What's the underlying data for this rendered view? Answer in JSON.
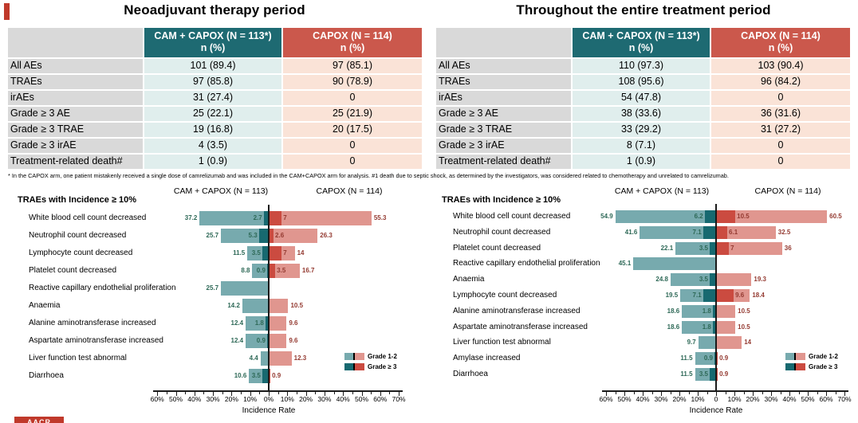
{
  "footnote": "* In the CAPOX arm, one patient mistakenly received a single dose of camrelizumab and was included in the CAM+CAPOX arm for analysis.  #1 death due to septic shock, as determined by the investigators, was considered related to chemotherapy and unrelated to camrelizumab.",
  "logo_text": "AACR",
  "colors": {
    "accent_red": "#C0392B",
    "teal_header": "#1E6A72",
    "red_header": "#CB584C",
    "gray_cell": "#D9D9D9",
    "teal_cell": "#E0EEED",
    "peach_cell": "#FAE3D7",
    "bar_teal_light": "#77AAAE",
    "bar_teal_dark": "#176970",
    "bar_red_light": "#E0968F",
    "bar_red_dark": "#CB4B40",
    "label_green": "#2E6957",
    "label_red": "#943A31"
  },
  "panels": [
    {
      "title": "Neoadjuvant therapy period",
      "table": {
        "arm_headers": [
          "CAM + CAPOX (N = 113*)",
          "CAPOX (N = 114)"
        ],
        "subheader": "n (%)",
        "rows": [
          {
            "label": "All AEs",
            "cam": "101 (89.4)",
            "capox": "97 (85.1)"
          },
          {
            "label": "TRAEs",
            "cam": "97 (85.8)",
            "capox": "90 (78.9)"
          },
          {
            "label": "irAEs",
            "cam": "31 (27.4)",
            "capox": "0"
          },
          {
            "label": "Grade ≥ 3  AE",
            "cam": "25 (22.1)",
            "capox": "25 (21.9)"
          },
          {
            "label": "Grade ≥ 3  TRAE",
            "cam": "19 (16.8)",
            "capox": "20 (17.5)"
          },
          {
            "label": "Grade ≥ 3  irAE",
            "cam": "4 (3.5)",
            "capox": "0"
          },
          {
            "label": "Treatment-related death#",
            "cam": "1 (0.9)",
            "capox": "0"
          }
        ]
      }
    },
    {
      "title": "Throughout the entire treatment period",
      "table": {
        "arm_headers": [
          "CAM + CAPOX (N = 113*)",
          "CAPOX (N = 114)"
        ],
        "subheader": "n (%)",
        "rows": [
          {
            "label": "All AEs",
            "cam": "110 (97.3)",
            "capox": "103 (90.4)"
          },
          {
            "label": "TRAEs",
            "cam": "108 (95.6)",
            "capox": "96 (84.2)"
          },
          {
            "label": "irAEs",
            "cam": "54 (47.8)",
            "capox": "0"
          },
          {
            "label": "Grade ≥ 3  AE",
            "cam": "38 (33.6)",
            "capox": "36 (31.6)"
          },
          {
            "label": "Grade ≥ 3  TRAE",
            "cam": "33 (29.2)",
            "capox": "31 (27.2)"
          },
          {
            "label": "Grade ≥ 3  irAE",
            "cam": "8 (7.1)",
            "capox": "0"
          },
          {
            "label": "Treatment-related death#",
            "cam": "1 (0.9)",
            "capox": "0"
          }
        ]
      }
    }
  ],
  "chart_data": [
    {
      "type": "bar",
      "variant": "butterfly-tornado",
      "title": "TRAEs with Incidence ≥ 10%",
      "group_headers": [
        "CAM + CAPOX (N = 113)",
        "CAPOX (N = 114)"
      ],
      "xlabel": "Incidence Rate",
      "axis": {
        "left_max_pct": 60,
        "right_max_pct": 70,
        "tick_step_pct": 10
      },
      "x_tick_labels": [
        "60%",
        "50%",
        "40%",
        "30%",
        "20%",
        "10%",
        "0%",
        "10%",
        "20%",
        "30%",
        "40%",
        "50%",
        "60%",
        "70%"
      ],
      "legend": [
        "Grade 1-2",
        "Grade ≥ 3"
      ],
      "rows": [
        {
          "label": "White blood cell count decreased",
          "cam_total": 37.2,
          "cam_g3": 2.7,
          "capox_g3": 7,
          "capox_total": 55.3
        },
        {
          "label": "Neutrophil count decreased",
          "cam_total": 25.7,
          "cam_g3": 5.3,
          "capox_g3": 2.6,
          "capox_total": 26.3
        },
        {
          "label": "Lymphocyte count decreased",
          "cam_total": 11.5,
          "cam_g3": 3.5,
          "capox_g3": 7,
          "capox_total": 14
        },
        {
          "label": "Platelet count decreased",
          "cam_total": 8.8,
          "cam_g3": 0.9,
          "capox_g3": 3.5,
          "capox_total": 16.7
        },
        {
          "label": "Reactive capillary endothelial proliferation",
          "cam_total": 25.7,
          "cam_g3": null,
          "capox_g3": null,
          "capox_total": null
        },
        {
          "label": "Anaemia",
          "cam_total": 14.2,
          "cam_g3": null,
          "capox_g3": null,
          "capox_total": 10.5
        },
        {
          "label": "Alanine aminotransferase increased",
          "cam_total": 12.4,
          "cam_g3": 1.8,
          "capox_g3": null,
          "capox_total": 9.6
        },
        {
          "label": "Aspartate aminotransferase increased",
          "cam_total": 12.4,
          "cam_g3": 0.9,
          "capox_g3": null,
          "capox_total": 9.6
        },
        {
          "label": "Liver function test abnormal",
          "cam_total": 4.4,
          "cam_g3": null,
          "capox_g3": null,
          "capox_total": 12.3
        },
        {
          "label": "Diarrhoea",
          "cam_total": 10.6,
          "cam_g3": 3.5,
          "capox_g3": 0.9,
          "capox_total": null
        }
      ]
    },
    {
      "type": "bar",
      "variant": "butterfly-tornado",
      "title": "TRAEs with Incidence ≥ 10%",
      "group_headers": [
        "CAM + CAPOX (N = 113)",
        "CAPOX (N = 114)"
      ],
      "xlabel": "Incidence Rate",
      "axis": {
        "left_max_pct": 60,
        "right_max_pct": 70,
        "tick_step_pct": 10
      },
      "x_tick_labels": [
        "60%",
        "50%",
        "40%",
        "30%",
        "20%",
        "10%",
        "0",
        "10%",
        "20%",
        "30%",
        "40%",
        "50%",
        "60%",
        "70%"
      ],
      "legend": [
        "Grade 1-2",
        "Grade ≥ 3"
      ],
      "rows": [
        {
          "label": "White blood cell count decreased",
          "cam_total": 54.9,
          "cam_g3": 6.2,
          "capox_g3": 10.5,
          "capox_total": 60.5
        },
        {
          "label": "Neutrophil count decreased",
          "cam_total": 41.6,
          "cam_g3": 7.1,
          "capox_g3": 6.1,
          "capox_total": 32.5
        },
        {
          "label": "Platelet count decreased",
          "cam_total": 22.1,
          "cam_g3": 3.5,
          "capox_g3": 7,
          "capox_total": 36
        },
        {
          "label": "Reactive capillary endothelial proliferation",
          "cam_total": 45.1,
          "cam_g3": null,
          "capox_g3": null,
          "capox_total": null
        },
        {
          "label": "Anaemia",
          "cam_total": 24.8,
          "cam_g3": 3.5,
          "capox_g3": null,
          "capox_total": 19.3
        },
        {
          "label": "Lymphocyte count decreased",
          "cam_total": 19.5,
          "cam_g3": 7.1,
          "capox_g3": 9.6,
          "capox_total": 18.4
        },
        {
          "label": "Alanine aminotransferase increased",
          "cam_total": 18.6,
          "cam_g3": 1.8,
          "capox_g3": null,
          "capox_total": 10.5
        },
        {
          "label": "Aspartate aminotransferase increased",
          "cam_total": 18.6,
          "cam_g3": 1.8,
          "capox_g3": null,
          "capox_total": 10.5
        },
        {
          "label": "Liver function test abnormal",
          "cam_total": 9.7,
          "cam_g3": null,
          "capox_g3": null,
          "capox_total": 14
        },
        {
          "label": "Amylase increased",
          "cam_total": 11.5,
          "cam_g3": 0.9,
          "capox_g3": 0.9,
          "capox_total": null
        },
        {
          "label": "Diarrhoea",
          "cam_total": 11.5,
          "cam_g3": 3.5,
          "capox_g3": 0.9,
          "capox_total": null
        }
      ]
    }
  ]
}
